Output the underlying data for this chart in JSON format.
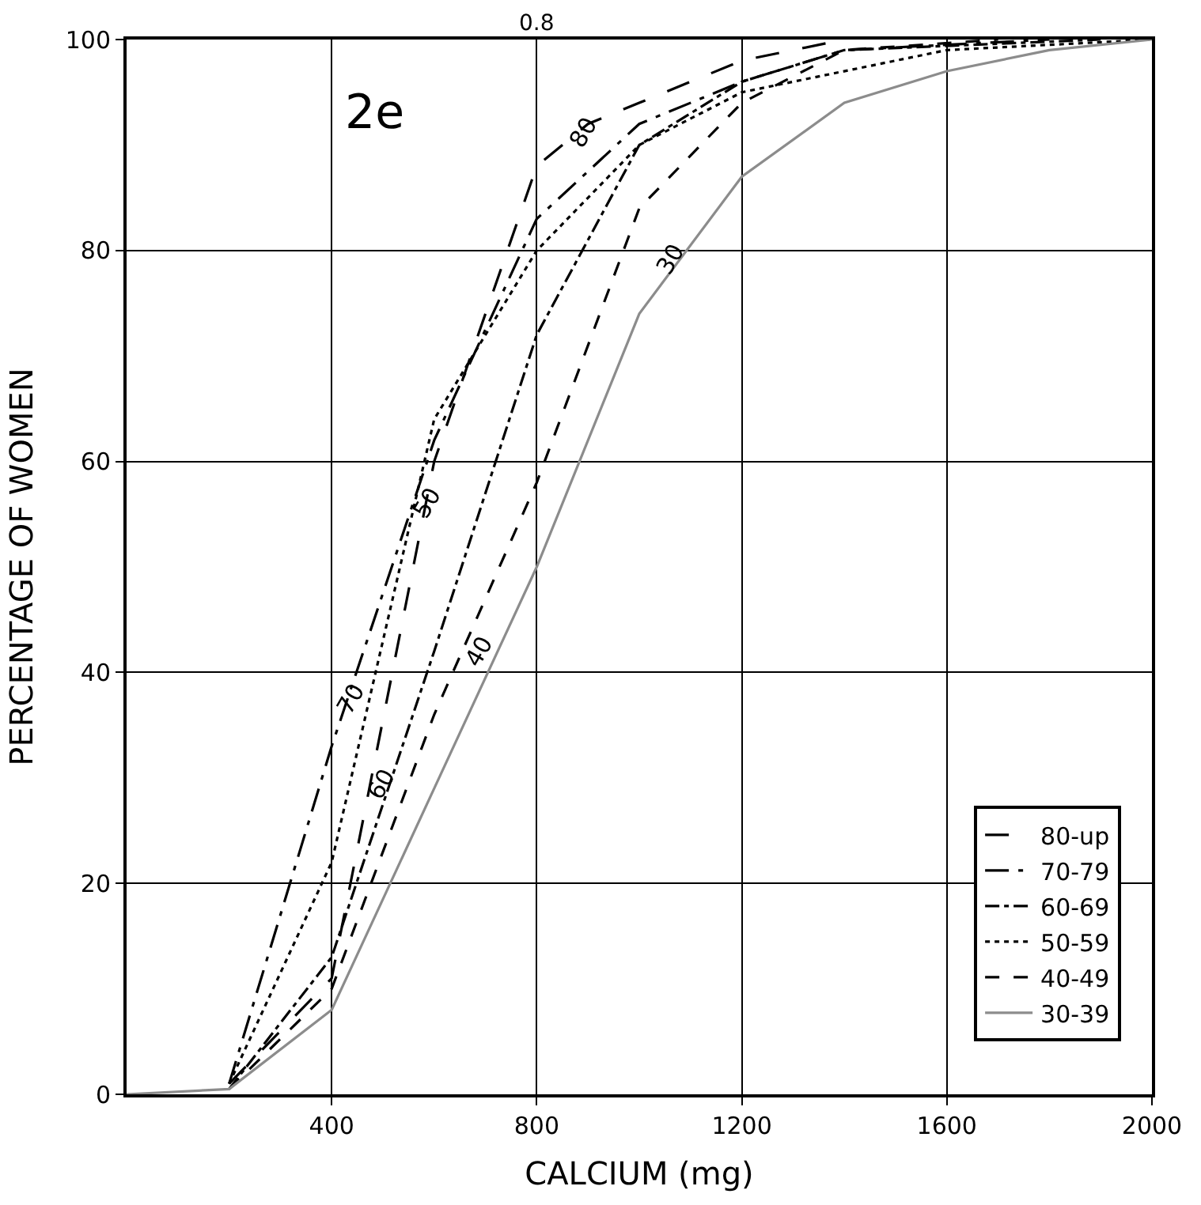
{
  "chart_data": {
    "type": "line",
    "xlabel": "CALCIUM (mg)",
    "ylabel": "PERCENTAGE OF WOMEN",
    "xlim": [
      0,
      2000
    ],
    "xticks": [
      400,
      800,
      1200,
      1600,
      2000
    ],
    "ylim": [
      0,
      100
    ],
    "yticks": [
      0,
      20,
      40,
      60,
      80,
      100
    ],
    "grid": true,
    "legend": "bottom right",
    "marker": "none",
    "series": [
      {
        "name": "80-up",
        "color": "#000000",
        "line_style": "longdash",
        "x": [
          200,
          400,
          600,
          800,
          900,
          1000,
          1200,
          1400
        ],
        "values": [
          1,
          11,
          60,
          88,
          92,
          94,
          98,
          100
        ]
      },
      {
        "name": "70-79",
        "color": "#000000",
        "line_style": "longdashdot",
        "x": [
          200,
          400,
          600,
          800,
          1000,
          1200,
          1400,
          1800
        ],
        "values": [
          1,
          33,
          62,
          83,
          92,
          96,
          99,
          100
        ]
      },
      {
        "name": "60-69",
        "color": "#000000",
        "line_style": "dashdot",
        "x": [
          200,
          400,
          600,
          800,
          1000,
          1200,
          1400,
          1900
        ],
        "values": [
          0.5,
          13,
          42,
          72,
          90,
          96,
          99,
          100
        ]
      },
      {
        "name": "50-59",
        "color": "#000000",
        "line_style": "dotted",
        "x": [
          200,
          400,
          600,
          800,
          1000,
          1200,
          1600,
          2000
        ],
        "values": [
          1,
          22,
          64,
          80,
          90,
          95,
          99,
          100
        ]
      },
      {
        "name": "40-49",
        "color": "#000000",
        "line_style": "dashed",
        "x": [
          200,
          400,
          600,
          800,
          1000,
          1200,
          1400,
          1700
        ],
        "values": [
          0.5,
          10,
          36,
          58,
          84,
          94,
          99,
          100
        ]
      },
      {
        "name": "30-39",
        "color": "#8c8c8c",
        "line_style": "solid",
        "x": [
          0,
          200,
          400,
          600,
          800,
          1000,
          1200,
          1400,
          1600,
          1800,
          2000
        ],
        "values": [
          0,
          0.5,
          8,
          29,
          50,
          74,
          87,
          94,
          97,
          99,
          100
        ]
      }
    ],
    "annotations": [
      "2e",
      "0.8",
      "80",
      "70",
      "60",
      "50",
      "40",
      "30"
    ]
  }
}
